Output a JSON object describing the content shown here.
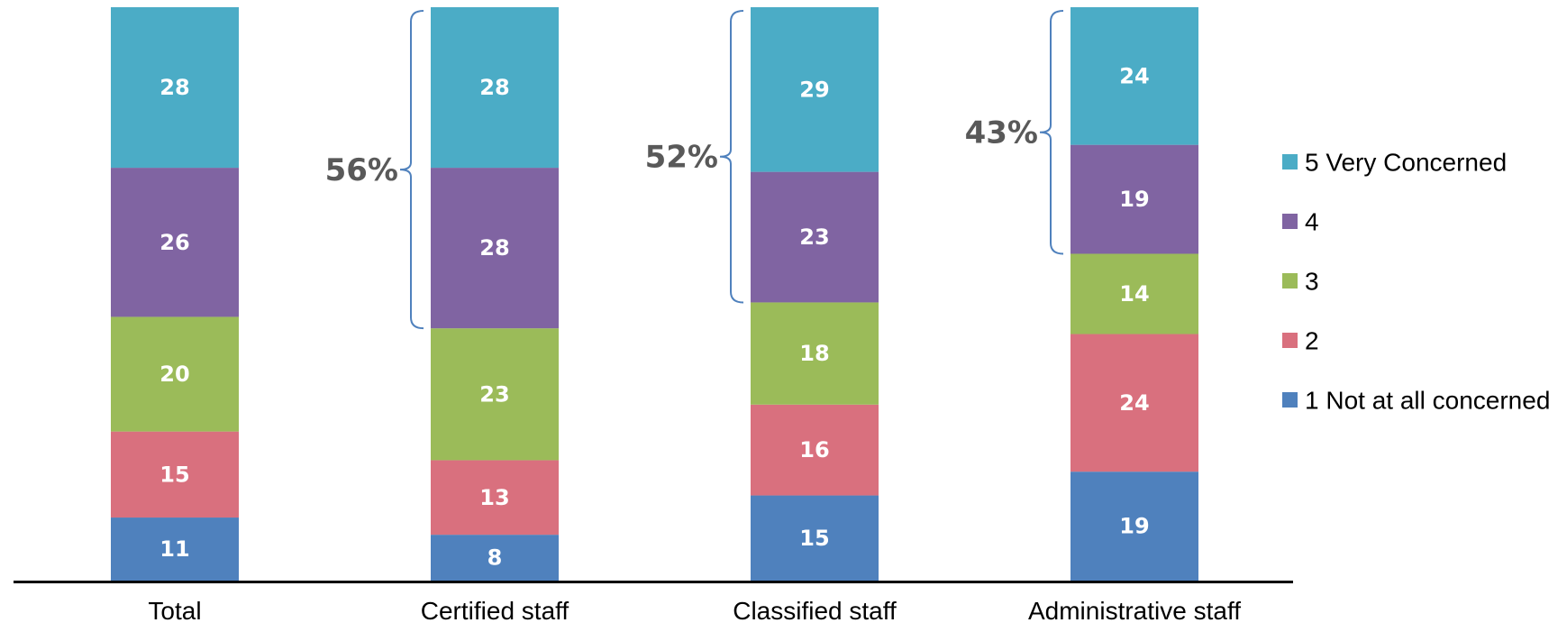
{
  "chart_data": {
    "type": "bar",
    "stacked": true,
    "categories": [
      "Total",
      "Certified staff",
      "Classified staff",
      "Administrative staff"
    ],
    "series": [
      {
        "name": "1 Not at all concerned",
        "color": "#4f81bd",
        "values": [
          11,
          8,
          15,
          19
        ]
      },
      {
        "name": "2",
        "color": "#d9707e",
        "values": [
          15,
          13,
          16,
          24
        ]
      },
      {
        "name": "3",
        "color": "#9bbb59",
        "values": [
          20,
          23,
          18,
          14
        ]
      },
      {
        "name": "4",
        "color": "#8064a2",
        "values": [
          26,
          28,
          23,
          19
        ]
      },
      {
        "name": "5 Very Concerned",
        "color": "#4bacc6",
        "values": [
          28,
          28,
          29,
          24
        ]
      }
    ],
    "brackets": [
      {
        "category": "Certified staff",
        "label": "56%"
      },
      {
        "category": "Classified staff",
        "label": "52%"
      },
      {
        "category": "Administrative staff",
        "label": "43%"
      }
    ],
    "legend_position": "right",
    "grid": false,
    "title": "",
    "xlabel": "",
    "ylabel": ""
  }
}
